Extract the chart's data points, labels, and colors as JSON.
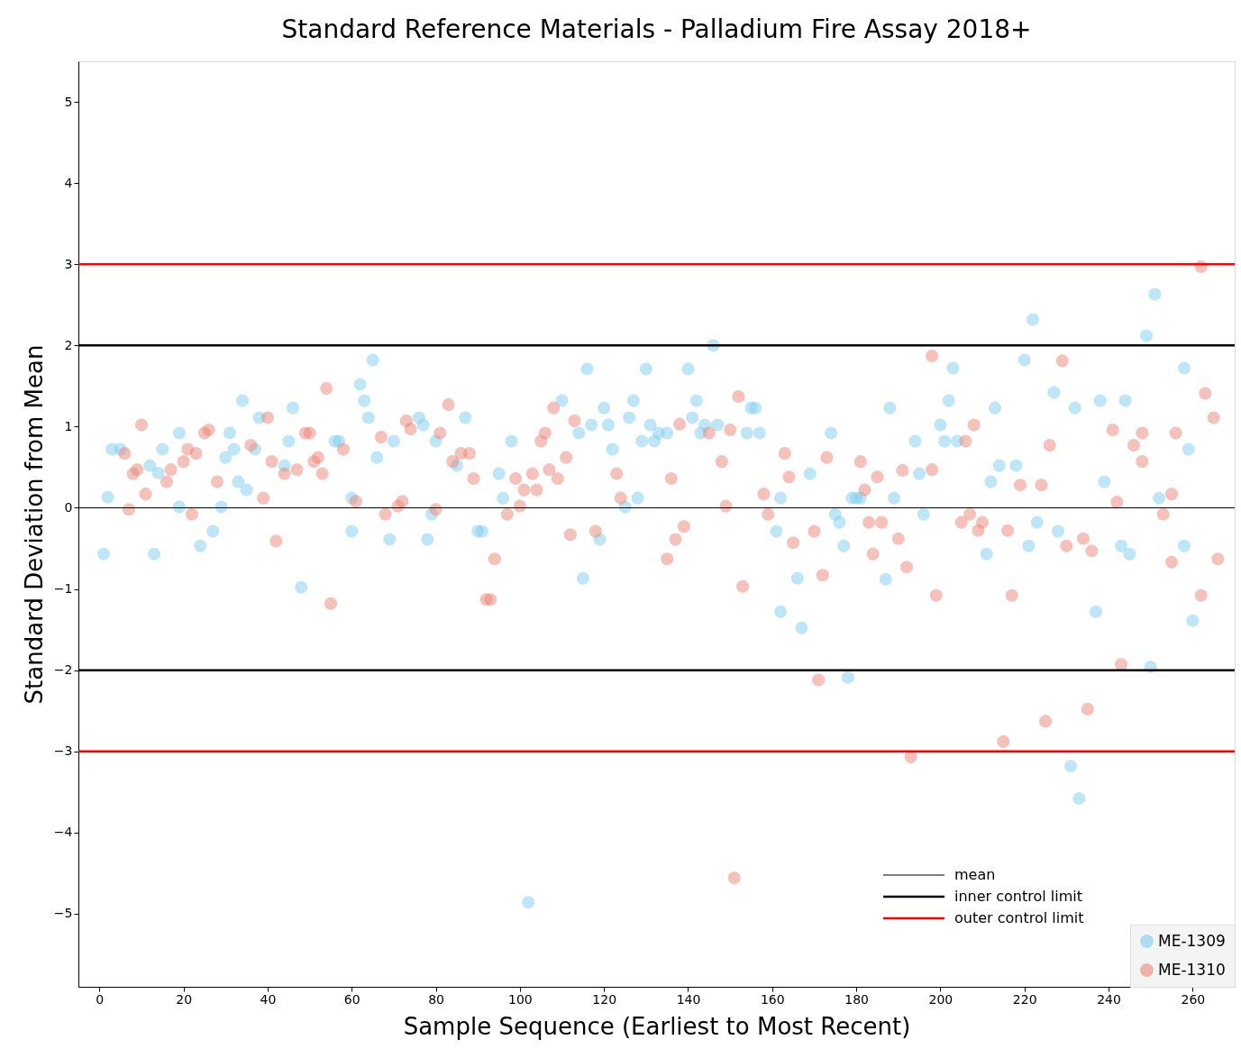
{
  "chart_data": {
    "type": "scatter",
    "title": "Standard Reference Materials - Palladium Fire Assay 2018+",
    "xlabel": "Sample Sequence (Earliest to Most Recent)",
    "ylabel": "Standard Deviation from Mean",
    "xlim": [
      -5,
      270
    ],
    "ylim": [
      -5.9,
      5.5
    ],
    "xticks": [
      0,
      20,
      40,
      60,
      80,
      100,
      120,
      140,
      160,
      180,
      200,
      220,
      240,
      260
    ],
    "yticks": [
      -5,
      -4,
      -3,
      -2,
      -1,
      0,
      1,
      2,
      3,
      4,
      5
    ],
    "grid": false,
    "legend": "bottom right",
    "marker": "circle",
    "ref_lines": [
      {
        "axis": "y",
        "value": 0,
        "label": "mean",
        "color": "#000000"
      },
      {
        "axis": "y",
        "value": 2,
        "label": "inner control limit",
        "color": "#000000"
      },
      {
        "axis": "y",
        "value": -2,
        "label": null,
        "color": "#000000"
      },
      {
        "axis": "y",
        "value": 3,
        "label": "outer control limit",
        "color": "#ff0000"
      },
      {
        "axis": "y",
        "value": -3,
        "label": null,
        "color": "#ff0000"
      }
    ],
    "series": [
      {
        "name": "ME-1309",
        "color": "#7fcdf0",
        "x": [
          1,
          2,
          3,
          5,
          12,
          13,
          14,
          15,
          19,
          19,
          24,
          27,
          29,
          30,
          31,
          32,
          33,
          34,
          35,
          37,
          38,
          44,
          45,
          46,
          48,
          56,
          57,
          60,
          60,
          62,
          63,
          64,
          65,
          66,
          69,
          70,
          76,
          77,
          79,
          80,
          78,
          85,
          87,
          90,
          91,
          95,
          96,
          98,
          102,
          115,
          116,
          117,
          119,
          114,
          110,
          120,
          121,
          122,
          125,
          126,
          127,
          128,
          129,
          130,
          131,
          132,
          133,
          135,
          140,
          141,
          142,
          143,
          144,
          146,
          147,
          154,
          155,
          156,
          157,
          161,
          162,
          162,
          166,
          167,
          169,
          174,
          175,
          176,
          177,
          179,
          180,
          178,
          181,
          187,
          188,
          189,
          194,
          195,
          196,
          200,
          201,
          202,
          203,
          204,
          211,
          212,
          213,
          214,
          218,
          220,
          221,
          222,
          223,
          227,
          228,
          231,
          232,
          233,
          237,
          238,
          239,
          244,
          243,
          245,
          249,
          251,
          250,
          252,
          258,
          258,
          259,
          260
        ],
        "values": [
          -0.57,
          0.13,
          0.72,
          0.72,
          0.52,
          -0.57,
          0.43,
          0.72,
          0.92,
          0.01,
          -0.47,
          -0.29,
          0.01,
          0.62,
          0.92,
          0.72,
          0.32,
          1.32,
          0.22,
          0.72,
          1.11,
          0.52,
          0.82,
          1.23,
          -0.98,
          0.82,
          0.82,
          -0.29,
          0.12,
          1.52,
          1.32,
          1.11,
          1.82,
          0.62,
          -0.39,
          0.82,
          1.11,
          1.02,
          -0.08,
          0.82,
          -0.39,
          0.52,
          1.11,
          -0.29,
          -0.29,
          0.42,
          0.12,
          0.82,
          -4.86,
          -0.87,
          1.71,
          1.02,
          -0.39,
          0.92,
          1.32,
          1.23,
          1.02,
          0.72,
          0.01,
          1.11,
          1.32,
          0.12,
          0.82,
          1.71,
          1.02,
          0.82,
          0.92,
          0.92,
          1.71,
          1.11,
          1.32,
          0.92,
          1.02,
          2.0,
          1.02,
          0.92,
          1.23,
          1.23,
          0.92,
          -0.29,
          0.12,
          -1.28,
          -0.87,
          -1.48,
          0.42,
          0.92,
          -0.08,
          -0.18,
          -0.47,
          0.12,
          0.12,
          -2.09,
          0.12,
          -0.88,
          1.23,
          0.12,
          0.82,
          0.42,
          -0.08,
          1.02,
          0.82,
          1.32,
          1.72,
          0.82,
          -0.57,
          0.32,
          1.23,
          0.52,
          0.52,
          1.82,
          -0.47,
          2.32,
          -0.18,
          1.42,
          -0.29,
          -3.18,
          1.23,
          -3.58,
          -1.28,
          1.32,
          0.32,
          1.32,
          -0.47,
          -0.57,
          2.12,
          2.63,
          -1.96,
          0.12,
          -0.47,
          1.72,
          0.72,
          -1.39
        ]
      },
      {
        "name": "ME-1310",
        "color": "#ec8478",
        "x": [
          6,
          7,
          8,
          9,
          10,
          11,
          16,
          17,
          20,
          21,
          22,
          23,
          25,
          26,
          28,
          36,
          39,
          40,
          41,
          42,
          44,
          47,
          49,
          50,
          51,
          52,
          53,
          54,
          55,
          58,
          61,
          67,
          68,
          71,
          72,
          73,
          74,
          81,
          80,
          83,
          84,
          86,
          88,
          89,
          92,
          93,
          94,
          97,
          99,
          100,
          101,
          103,
          104,
          105,
          106,
          107,
          108,
          109,
          111,
          112,
          113,
          118,
          123,
          124,
          135,
          136,
          137,
          138,
          139,
          145,
          148,
          149,
          151,
          152,
          153,
          150,
          158,
          159,
          163,
          164,
          165,
          171,
          170,
          172,
          173,
          181,
          182,
          183,
          184,
          185,
          186,
          190,
          191,
          192,
          193,
          198,
          198,
          199,
          205,
          206,
          207,
          208,
          209,
          210,
          215,
          216,
          217,
          219,
          224,
          225,
          226,
          229,
          230,
          234,
          235,
          236,
          241,
          242,
          243,
          246,
          248,
          248,
          253,
          255,
          255,
          256,
          262,
          262,
          263,
          265,
          266
        ],
        "values": [
          0.67,
          -0.02,
          0.42,
          0.47,
          1.02,
          0.17,
          0.32,
          0.47,
          0.57,
          0.72,
          -0.08,
          0.67,
          0.92,
          0.96,
          0.32,
          0.77,
          0.12,
          1.11,
          0.57,
          -0.41,
          0.42,
          0.47,
          0.92,
          0.92,
          0.57,
          0.62,
          0.42,
          1.47,
          -1.18,
          0.72,
          0.08,
          0.87,
          -0.08,
          0.02,
          0.08,
          1.07,
          0.97,
          0.92,
          -0.02,
          1.27,
          0.57,
          0.67,
          0.67,
          0.36,
          -1.13,
          -1.13,
          -0.63,
          -0.08,
          0.36,
          0.02,
          0.22,
          0.42,
          0.22,
          0.82,
          0.92,
          0.47,
          1.23,
          0.36,
          0.62,
          -0.33,
          1.07,
          -0.29,
          0.42,
          0.12,
          -0.63,
          0.36,
          -0.39,
          1.03,
          -0.23,
          0.92,
          0.57,
          0.02,
          -4.56,
          1.37,
          -0.97,
          0.96,
          0.17,
          -0.08,
          0.67,
          0.38,
          -0.43,
          -2.12,
          -0.29,
          -0.83,
          0.62,
          0.57,
          0.22,
          -0.18,
          -0.57,
          0.38,
          -0.18,
          -0.38,
          0.46,
          -0.73,
          -3.07,
          0.47,
          1.87,
          -1.08,
          -0.18,
          0.82,
          -0.08,
          1.02,
          -0.28,
          -0.18,
          -2.88,
          -0.28,
          -1.08,
          0.28,
          0.28,
          -2.63,
          0.77,
          1.81,
          -0.47,
          -0.38,
          -2.48,
          -0.53,
          0.96,
          0.07,
          -1.93,
          0.77,
          0.92,
          0.57,
          -0.08,
          0.17,
          -0.67,
          0.92,
          -1.08,
          2.97,
          1.41,
          1.11,
          -0.63
        ]
      }
    ]
  }
}
